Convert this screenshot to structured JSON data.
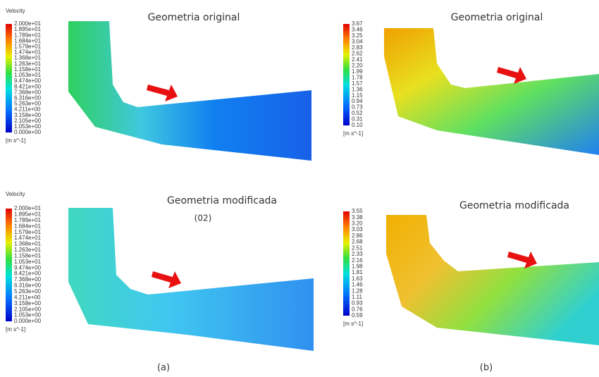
{
  "panels": [
    {
      "legend_title": "Velocity",
      "title": "Geometria original",
      "levels": [
        "2.000e+01",
        "1.895e+01",
        "1.789e+01",
        "1.684e+01",
        "1.579e+01",
        "1.474e+01",
        "1.368e+01",
        "1.263e+01",
        "1.158e+01",
        "1.053e+01",
        "9.474e+00",
        "8.421e+00",
        "7.368e+00",
        "6.316e+00",
        "5.263e+00",
        "4.211e+00",
        "3.158e+00",
        "2.105e+00",
        "1.053e+00",
        "0.000e+00"
      ],
      "unit": "[m s^-1]"
    },
    {
      "title": "Geometria original",
      "levels": [
        "3.67",
        "3.46",
        "3.25",
        "3.04",
        "2.83",
        "2.62",
        "2.41",
        "2.20",
        "1.99",
        "1.78",
        "1.57",
        "1.36",
        "1.15",
        "0.94",
        "0.73",
        "0.52",
        "0.31",
        "0.10"
      ],
      "unit": "[m s^-1]"
    },
    {
      "legend_title": "Velocity",
      "title": "Geometria modificada",
      "subtitle": "(02)",
      "levels": [
        "2.000e+01",
        "1.895e+01",
        "1.789e+01",
        "1.684e+01",
        "1.579e+01",
        "1.474e+01",
        "1.368e+01",
        "1.263e+01",
        "1.158e+01",
        "1.053e+01",
        "9.474e+00",
        "8.421e+00",
        "7.368e+00",
        "6.316e+00",
        "5.263e+00",
        "4.211e+00",
        "3.158e+00",
        "2.105e+00",
        "1.053e+00",
        "0.000e+00"
      ],
      "unit": "[m s^-1]"
    },
    {
      "title": "Geometria modificada",
      "levels": [
        "3.55",
        "3.38",
        "3.20",
        "3.03",
        "2.86",
        "2.68",
        "2.51",
        "2.33",
        "2.16",
        "1.98",
        "1.81",
        "1.63",
        "1.46",
        "1.28",
        "1.11",
        "0.93",
        "0.76",
        "0.59"
      ],
      "unit": "[m s^-1]"
    }
  ],
  "captions": [
    "(a)",
    "(b)"
  ]
}
